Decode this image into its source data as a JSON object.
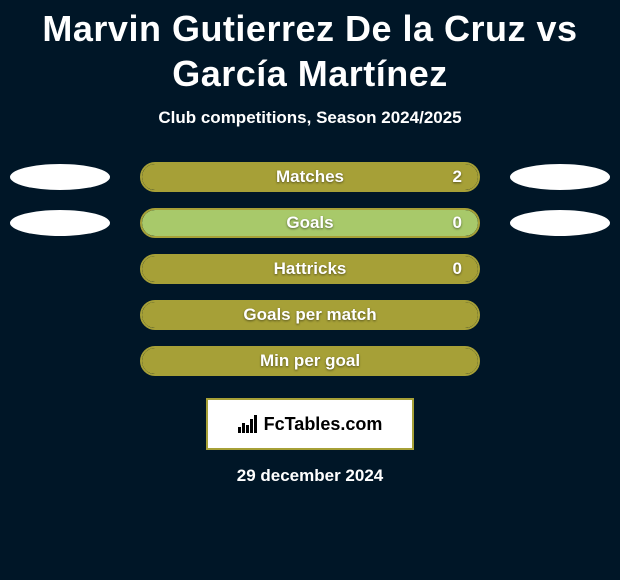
{
  "colors": {
    "background": "#001627",
    "text": "#ffffff",
    "bar_fill": "#a6a037",
    "bar_light": "#a8c96a",
    "bar_border": "#a6a037",
    "brand_border": "#a6a037"
  },
  "title": "Marvin Gutierrez De la Cruz vs García Martínez",
  "title_fontsize": 36,
  "subtitle": "Club competitions, Season 2024/2025",
  "subtitle_fontsize": 17,
  "label_fontsize": 17,
  "stats": [
    {
      "label": "Matches",
      "right_value": "2",
      "fill_pct": 100,
      "fill_color": "#a6a037",
      "show_ellipses": true,
      "show_value": true
    },
    {
      "label": "Goals",
      "right_value": "0",
      "fill_pct": 100,
      "fill_color": "#a8c96a",
      "show_ellipses": true,
      "show_value": true
    },
    {
      "label": "Hattricks",
      "right_value": "0",
      "fill_pct": 100,
      "fill_color": "#a6a037",
      "show_ellipses": false,
      "show_value": true
    },
    {
      "label": "Goals per match",
      "right_value": "",
      "fill_pct": 100,
      "fill_color": "#a6a037",
      "show_ellipses": false,
      "show_value": false
    },
    {
      "label": "Min per goal",
      "right_value": "",
      "fill_pct": 100,
      "fill_color": "#a6a037",
      "show_ellipses": false,
      "show_value": false
    }
  ],
  "brand": {
    "icon_name": "bar-chart-icon",
    "text": "FcTables.com"
  },
  "date": "29 december 2024"
}
